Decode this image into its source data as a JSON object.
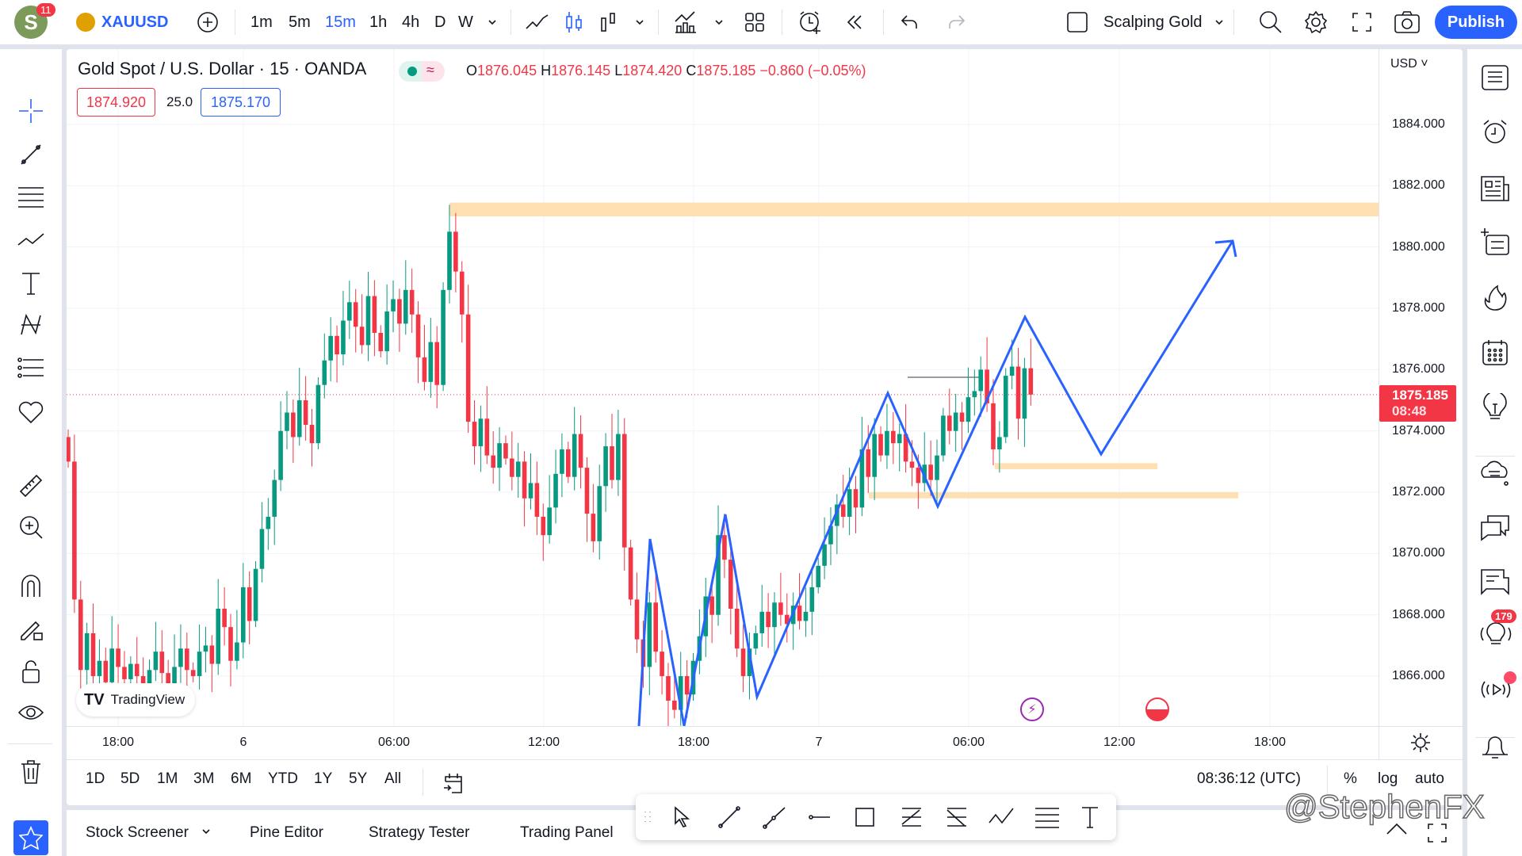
{
  "topbar": {
    "avatar_letter": "S",
    "notification_count": "11",
    "symbol": "XAUUSD",
    "intervals": [
      "1m",
      "5m",
      "15m",
      "1h",
      "4h",
      "D",
      "W"
    ],
    "active_interval": "15m",
    "layout_name": "Scalping Gold",
    "publish_label": "Publish"
  },
  "legend": {
    "title": "Gold Spot / U.S. Dollar · 15 · OANDA",
    "o_label": "O",
    "o": "1876.045",
    "h_label": "H",
    "h": "1876.145",
    "l_label": "L",
    "l": "1874.420",
    "c_label": "C",
    "c": "1875.185",
    "change": "−0.860 (−0.05%)",
    "bid": "1874.920",
    "spread": "25.0",
    "ask": "1875.170"
  },
  "price_axis": {
    "currency": "USD",
    "current_price": "1875.185",
    "countdown": "08:48"
  },
  "watermark_logo": "TradingView",
  "range_bar": {
    "ranges": [
      "1D",
      "5D",
      "1M",
      "3M",
      "6M",
      "YTD",
      "1Y",
      "5Y",
      "All"
    ],
    "clock": "08:36:12 (UTC)",
    "percent": "%",
    "log": "log",
    "auto": "auto"
  },
  "bottom_tabs": [
    "Stock Screener",
    "Pine Editor",
    "Strategy Tester",
    "Trading Panel"
  ],
  "right_sidebar": {
    "ideas_badge": "179"
  },
  "overlay_watermark": "@StephenFX",
  "colors": {
    "up": "#089981",
    "down": "#f23645",
    "accent": "#2962ff",
    "zone": "#ffe0b2",
    "drawing": "#2962ff"
  },
  "chart_data": {
    "type": "candlestick",
    "symbol": "XAUUSD",
    "interval": "15m",
    "ylim": [
      1864.5,
      1885
    ],
    "y_ticks": [
      "1884.000",
      "1882.000",
      "1880.000",
      "1878.000",
      "1876.000",
      "1874.000",
      "1872.000",
      "1870.000",
      "1868.000",
      "1866.000"
    ],
    "x_ticks": [
      "18:00",
      "6",
      "06:00",
      "12:00",
      "18:00",
      "7",
      "06:00",
      "12:00",
      "18:00"
    ],
    "grid": true,
    "closes": [
      1873.0,
      1868.5,
      1866.2,
      1867.4,
      1866.0,
      1866.5,
      1865.8,
      1866.9,
      1866.3,
      1865.9,
      1866.4,
      1866.0,
      1865.6,
      1866.2,
      1866.8,
      1866.1,
      1865.7,
      1866.3,
      1866.9,
      1866.2,
      1866.0,
      1866.8,
      1867.0,
      1866.4,
      1868.2,
      1867.6,
      1866.5,
      1867.1,
      1868.9,
      1867.8,
      1869.5,
      1870.8,
      1871.2,
      1872.4,
      1874.0,
      1874.6,
      1873.8,
      1875.0,
      1874.2,
      1873.6,
      1875.5,
      1876.3,
      1877.1,
      1876.5,
      1877.6,
      1878.2,
      1877.4,
      1876.8,
      1878.4,
      1877.2,
      1876.6,
      1877.9,
      1878.3,
      1877.5,
      1878.6,
      1877.8,
      1876.4,
      1875.6,
      1876.9,
      1875.5,
      1878.6,
      1880.5,
      1879.2,
      1877.8,
      1874.3,
      1873.5,
      1874.4,
      1873.2,
      1872.8,
      1873.6,
      1873.1,
      1872.5,
      1873.0,
      1871.8,
      1872.3,
      1871.2,
      1870.6,
      1871.5,
      1872.6,
      1873.4,
      1872.5,
      1873.9,
      1872.8,
      1871.3,
      1870.4,
      1872.2,
      1873.5,
      1872.4,
      1873.9,
      1870.2,
      1868.5,
      1867.2,
      1866.3,
      1868.4,
      1866.8,
      1866.0,
      1865.2,
      1864.9,
      1866.0,
      1865.4,
      1866.5,
      1867.3,
      1868.6,
      1868.0,
      1870.6,
      1869.8,
      1868.2,
      1866.9,
      1866.0,
      1866.9,
      1867.4,
      1868.1,
      1867.6,
      1868.4,
      1868.0,
      1867.7,
      1868.3,
      1867.8,
      1868.1,
      1868.9,
      1869.6,
      1870.3,
      1870.9,
      1871.6,
      1871.2,
      1872.1,
      1871.5,
      1873.4,
      1872.5,
      1873.9,
      1873.2,
      1874.0,
      1873.6,
      1873.9,
      1873.0,
      1872.8,
      1872.3,
      1872.9,
      1872.4,
      1873.2,
      1874.5,
      1874.0,
      1874.6,
      1874.3,
      1875.1,
      1875.3,
      1876.0,
      1874.9,
      1873.4,
      1873.8,
      1875.8,
      1876.1,
      1874.4,
      1876.045,
      1875.185
    ],
    "zones": [
      {
        "name": "resistance-zone",
        "from": 1881.0,
        "to": 1881.45
      },
      {
        "name": "support-zone-upper",
        "from": 1872.75,
        "to": 1872.95
      },
      {
        "name": "support-zone-lower",
        "from": 1871.8,
        "to": 1872.0
      }
    ]
  }
}
